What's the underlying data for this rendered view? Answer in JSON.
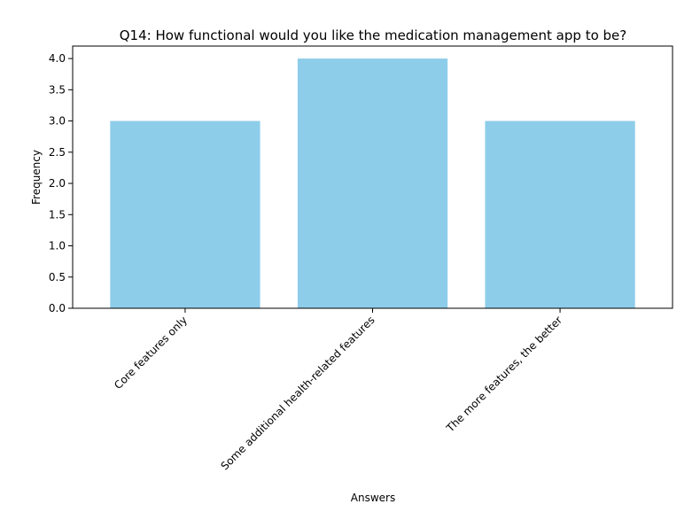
{
  "chart_data": {
    "type": "bar",
    "title": "Q14: How functional would you like the medication management app to be?",
    "xlabel": "Answers",
    "ylabel": "Frequency",
    "categories": [
      "Core features only",
      "Some additional health-related features",
      "The more features, the better"
    ],
    "values": [
      3,
      4,
      3
    ],
    "ylim": [
      0,
      4.2
    ],
    "yticks": [
      "0.0",
      "0.5",
      "1.0",
      "1.5",
      "2.0",
      "2.5",
      "3.0",
      "3.5",
      "4.0"
    ],
    "grid": false,
    "legend": "none",
    "colors": {
      "bar": "#8ecdea",
      "axis": "#000000",
      "background": "#ffffff"
    }
  }
}
